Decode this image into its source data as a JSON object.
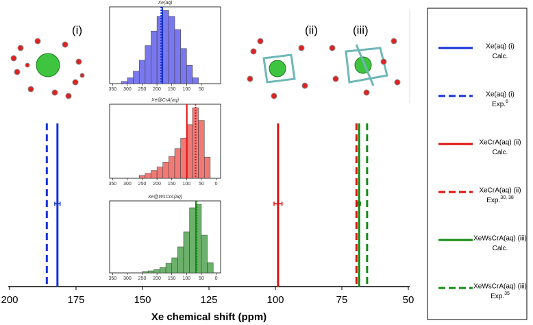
{
  "chart_data": {
    "type": "vline",
    "xlabel": "Xe chemical shift (ppm)",
    "xlim": [
      200,
      50
    ],
    "xticks": [
      200,
      175,
      150,
      125,
      100,
      75,
      50
    ],
    "panels": [
      "(i)",
      "(ii)",
      "(iii)"
    ],
    "series": [
      {
        "name": "Xe(aq) (i)",
        "note": "Calc.",
        "color": "#1432d8",
        "dashed": false,
        "value": 182,
        "error": 1
      },
      {
        "name": "Xe(aq) (i)",
        "note": "Exp.",
        "ref": "6",
        "color": "#1432d8",
        "dashed": true,
        "value": 186
      },
      {
        "name": "XeCrA(aq) (ii)",
        "note": "Calc.",
        "color": "#e01010",
        "dashed": false,
        "value": 99,
        "error": 1.5
      },
      {
        "name": "XeCrA(aq) (ii)",
        "note": "Exp.",
        "ref": "30, 38",
        "color": "#e01010",
        "dashed": true,
        "value": 69.5
      },
      {
        "name": "XeWsCrA(aq) (iii)",
        "note": "Calc.",
        "color": "#138a13",
        "dashed": false,
        "value": 68.5,
        "error": 0.5
      },
      {
        "name": "XeWsCrA(aq) (iii)",
        "note": "Exp.",
        "ref": "35",
        "color": "#138a13",
        "dashed": true,
        "value": 65.5
      }
    ],
    "insets": [
      {
        "type": "histogram",
        "title": "Xe(aq)",
        "color": "#7a78ee",
        "xlim": [
          360,
          -15
        ],
        "xticks": [
          350,
          300,
          250,
          200,
          150,
          100,
          50
        ],
        "ylim": [
          0,
          105
        ],
        "bins": [
          320,
          300,
          280,
          260,
          240,
          220,
          200,
          180,
          160,
          140,
          120,
          100,
          80,
          60
        ],
        "values": [
          3,
          8,
          17,
          32,
          52,
          72,
          92,
          100,
          92,
          74,
          48,
          25,
          8
        ]
      },
      {
        "type": "histogram",
        "title": "Xe@CrA(aq)",
        "color": "#f07a76",
        "xlim": [
          360,
          -15
        ],
        "xticks": [
          350,
          300,
          250,
          200,
          150,
          100,
          50,
          0
        ],
        "ylim": [
          0,
          105
        ],
        "bins": [
          260,
          240,
          220,
          200,
          180,
          160,
          140,
          120,
          100,
          80,
          60,
          40,
          20
        ],
        "values": [
          4,
          7,
          11,
          16,
          23,
          31,
          42,
          57,
          76,
          100,
          82,
          30
        ]
      },
      {
        "type": "histogram",
        "title": "Xe@WsCrA(aq)",
        "color": "#6cb06c",
        "xlim": [
          360,
          -15
        ],
        "xticks": [
          350,
          300,
          250,
          200,
          150,
          100,
          50,
          0
        ],
        "ylim": [
          0,
          105
        ],
        "bins": [
          250,
          230,
          210,
          190,
          170,
          150,
          130,
          110,
          90,
          70,
          50,
          30,
          10
        ],
        "values": [
          2,
          3,
          5,
          8,
          14,
          22,
          38,
          60,
          95,
          100,
          55,
          15
        ]
      }
    ]
  }
}
